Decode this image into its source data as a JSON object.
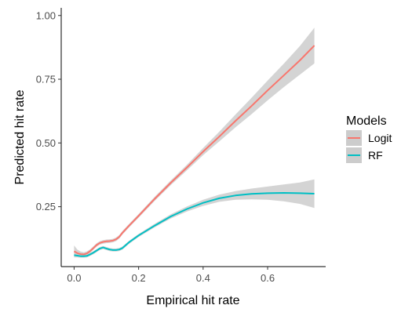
{
  "chart_data": {
    "type": "line",
    "xlabel": "Empirical hit rate",
    "ylabel": "Predicted hit rate",
    "xlim": [
      -0.04,
      0.78
    ],
    "ylim": [
      0.015,
      1.03
    ],
    "x_ticks": [
      0.0,
      0.2,
      0.4,
      0.6
    ],
    "x_tick_labels": [
      "0.0",
      "0.2",
      "0.4",
      "0.6"
    ],
    "y_ticks": [
      0.25,
      0.5,
      0.75,
      1.0
    ],
    "y_tick_labels": [
      "0.25",
      "0.50",
      "0.75",
      "1.00"
    ],
    "grid": false,
    "legend": {
      "title": "Models",
      "position": "right"
    },
    "confidence_band_color": "#cccccc",
    "series": [
      {
        "name": "Logit",
        "color": "#F8766D",
        "points": [
          [
            0.0,
            0.075
          ],
          [
            0.01,
            0.068
          ],
          [
            0.02,
            0.064
          ],
          [
            0.03,
            0.063
          ],
          [
            0.04,
            0.067
          ],
          [
            0.05,
            0.076
          ],
          [
            0.06,
            0.088
          ],
          [
            0.07,
            0.1
          ],
          [
            0.08,
            0.108
          ],
          [
            0.09,
            0.112
          ],
          [
            0.1,
            0.114
          ],
          [
            0.11,
            0.115
          ],
          [
            0.12,
            0.117
          ],
          [
            0.13,
            0.122
          ],
          [
            0.14,
            0.132
          ],
          [
            0.15,
            0.148
          ],
          [
            0.17,
            0.175
          ],
          [
            0.2,
            0.214
          ],
          [
            0.25,
            0.281
          ],
          [
            0.3,
            0.344
          ],
          [
            0.35,
            0.404
          ],
          [
            0.4,
            0.466
          ],
          [
            0.45,
            0.525
          ],
          [
            0.5,
            0.586
          ],
          [
            0.55,
            0.645
          ],
          [
            0.6,
            0.706
          ],
          [
            0.65,
            0.765
          ],
          [
            0.7,
            0.824
          ],
          [
            0.745,
            0.882
          ]
        ],
        "band": [
          [
            0.0,
            0.058,
            0.098
          ],
          [
            0.01,
            0.057,
            0.082
          ],
          [
            0.02,
            0.056,
            0.074
          ],
          [
            0.03,
            0.056,
            0.071
          ],
          [
            0.04,
            0.06,
            0.075
          ],
          [
            0.05,
            0.069,
            0.083
          ],
          [
            0.06,
            0.081,
            0.095
          ],
          [
            0.07,
            0.093,
            0.107
          ],
          [
            0.08,
            0.101,
            0.115
          ],
          [
            0.09,
            0.105,
            0.119
          ],
          [
            0.1,
            0.107,
            0.121
          ],
          [
            0.11,
            0.108,
            0.122
          ],
          [
            0.12,
            0.11,
            0.124
          ],
          [
            0.13,
            0.115,
            0.129
          ],
          [
            0.14,
            0.125,
            0.139
          ],
          [
            0.15,
            0.141,
            0.155
          ],
          [
            0.17,
            0.168,
            0.182
          ],
          [
            0.2,
            0.207,
            0.221
          ],
          [
            0.25,
            0.273,
            0.289
          ],
          [
            0.3,
            0.335,
            0.353
          ],
          [
            0.35,
            0.393,
            0.415
          ],
          [
            0.4,
            0.452,
            0.48
          ],
          [
            0.45,
            0.506,
            0.544
          ],
          [
            0.5,
            0.561,
            0.611
          ],
          [
            0.55,
            0.613,
            0.677
          ],
          [
            0.6,
            0.667,
            0.745
          ],
          [
            0.65,
            0.719,
            0.811
          ],
          [
            0.7,
            0.768,
            0.88
          ],
          [
            0.745,
            0.812,
            0.952
          ]
        ]
      },
      {
        "name": "RF",
        "color": "#00BFC4",
        "points": [
          [
            0.0,
            0.06
          ],
          [
            0.01,
            0.058
          ],
          [
            0.02,
            0.056
          ],
          [
            0.03,
            0.056
          ],
          [
            0.04,
            0.057
          ],
          [
            0.05,
            0.063
          ],
          [
            0.06,
            0.07
          ],
          [
            0.07,
            0.078
          ],
          [
            0.08,
            0.086
          ],
          [
            0.09,
            0.09
          ],
          [
            0.1,
            0.086
          ],
          [
            0.11,
            0.082
          ],
          [
            0.12,
            0.08
          ],
          [
            0.13,
            0.08
          ],
          [
            0.14,
            0.082
          ],
          [
            0.15,
            0.088
          ],
          [
            0.17,
            0.11
          ],
          [
            0.2,
            0.137
          ],
          [
            0.25,
            0.176
          ],
          [
            0.3,
            0.212
          ],
          [
            0.35,
            0.241
          ],
          [
            0.4,
            0.265
          ],
          [
            0.45,
            0.283
          ],
          [
            0.5,
            0.294
          ],
          [
            0.55,
            0.3
          ],
          [
            0.6,
            0.303
          ],
          [
            0.65,
            0.304
          ],
          [
            0.7,
            0.303
          ],
          [
            0.745,
            0.301
          ]
        ],
        "band": [
          [
            0.0,
            0.051,
            0.07
          ],
          [
            0.01,
            0.051,
            0.065
          ],
          [
            0.02,
            0.05,
            0.062
          ],
          [
            0.03,
            0.05,
            0.062
          ],
          [
            0.04,
            0.051,
            0.063
          ],
          [
            0.05,
            0.057,
            0.069
          ],
          [
            0.06,
            0.064,
            0.076
          ],
          [
            0.07,
            0.072,
            0.084
          ],
          [
            0.08,
            0.08,
            0.092
          ],
          [
            0.09,
            0.084,
            0.096
          ],
          [
            0.1,
            0.08,
            0.092
          ],
          [
            0.11,
            0.076,
            0.088
          ],
          [
            0.12,
            0.074,
            0.086
          ],
          [
            0.13,
            0.074,
            0.086
          ],
          [
            0.14,
            0.076,
            0.088
          ],
          [
            0.15,
            0.082,
            0.094
          ],
          [
            0.17,
            0.104,
            0.116
          ],
          [
            0.2,
            0.131,
            0.143
          ],
          [
            0.25,
            0.169,
            0.183
          ],
          [
            0.3,
            0.204,
            0.22
          ],
          [
            0.35,
            0.231,
            0.251
          ],
          [
            0.4,
            0.253,
            0.277
          ],
          [
            0.45,
            0.269,
            0.297
          ],
          [
            0.5,
            0.277,
            0.311
          ],
          [
            0.55,
            0.279,
            0.321
          ],
          [
            0.6,
            0.277,
            0.329
          ],
          [
            0.65,
            0.271,
            0.337
          ],
          [
            0.7,
            0.261,
            0.345
          ],
          [
            0.745,
            0.245,
            0.357
          ]
        ]
      }
    ]
  }
}
